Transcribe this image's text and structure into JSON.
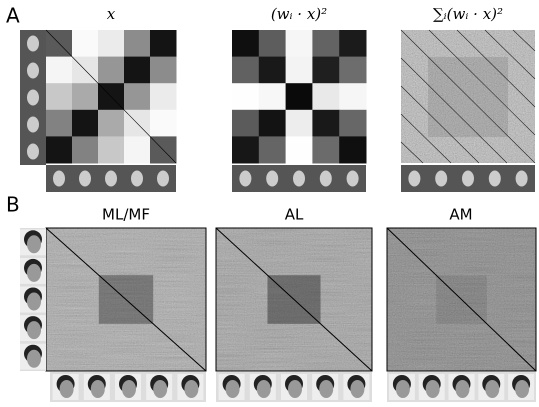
{
  "panels": [
    {
      "label": "A",
      "titles": [
        "x",
        "(wᵢ · x)²",
        "∑ᵢ(wᵢ · x)²"
      ]
    },
    {
      "label": "B",
      "titles": [
        "ML/MF",
        "AL",
        "AM"
      ]
    }
  ]
}
